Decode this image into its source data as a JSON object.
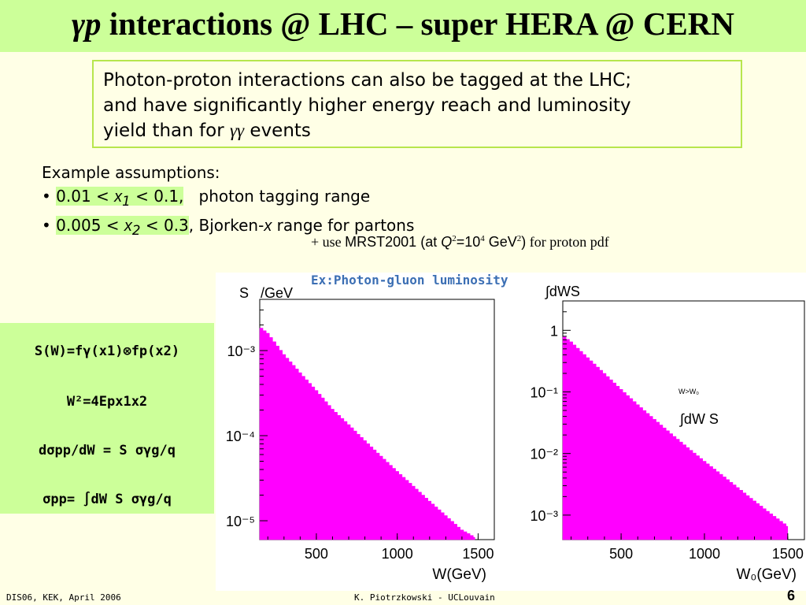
{
  "title": {
    "gp": "γp",
    "rest": " interactions @ LHC – super HERA @ CERN"
  },
  "callout": {
    "line1": "Photon-proton interactions can also be tagged at the LHC;",
    "line2": "and have significantly higher energy reach and luminosity",
    "line3_pre": "yield than for ",
    "line3_sym": "γγ",
    "line3_post": " events"
  },
  "assumptions": {
    "heading": "Example assumptions:",
    "b1_pre": "• ",
    "b1_hl_a": "0.01 < ",
    "b1_var": "x",
    "b1_sub": "1",
    "b1_hl_b": " < 0.1,",
    "b1_post": "   photon tagging range",
    "b2_pre": "• ",
    "b2_hl_a": "0.005 < ",
    "b2_var": "x",
    "b2_sub": "2",
    "b2_hl_b": " < 0.3",
    "b2_post": ", Bjorken-",
    "b2_var2": "x",
    "b2_post2": " range for partons"
  },
  "note": {
    "a": "+ use ",
    "b": "MRST2001 (at ",
    "q": "Q",
    "q_sup": "2",
    "c": "=10",
    "c_sup": "4",
    "d": " GeV",
    "d_sup": "2",
    "e": ")",
    "f": " for proton pdf"
  },
  "formulas": {
    "f1": "S(W)=fγ(x1)⊗fp(x2)",
    "f2": "W²=4Epx1x2",
    "f3": "dσpp/dW = S σγg/q",
    "f4": "σpp= ∫dW S σγg/q"
  },
  "figure": {
    "caption": "Ex:Photon-gluon luminosity",
    "left_ylabel": "S   /GeV",
    "right_ylabel": "∫dWS",
    "right_annot_sub": "W>W₀",
    "right_annot": "∫dW S"
  },
  "chart_data": [
    {
      "type": "area",
      "title": "",
      "xlabel": "W(GeV)",
      "ylabel": "S   /GeV",
      "yscale": "log",
      "xlim": [
        150,
        1600
      ],
      "ylim": [
        6e-06,
        0.004
      ],
      "x_ticks": [
        "500",
        "1000",
        "1500"
      ],
      "y_ticks": [
        "10⁻³",
        "10⁻⁴",
        "10⁻⁵"
      ],
      "color": "#ff00ff",
      "x": [
        150,
        200,
        300,
        400,
        500,
        600,
        700,
        800,
        900,
        1000,
        1100,
        1200,
        1300,
        1400,
        1480
      ],
      "y": [
        0.0019,
        0.0016,
        0.0009,
        0.00055,
        0.00034,
        0.000205,
        0.000135,
        8.75e-05,
        5.75e-05,
        3.8e-05,
        2.55e-05,
        1.7e-05,
        1.15e-05,
        7.8e-06,
        6.4e-06
      ]
    },
    {
      "type": "area",
      "title": "",
      "xlabel": "W₀(GeV)",
      "ylabel": "∫dWS",
      "yscale": "log",
      "xlim": [
        150,
        1600
      ],
      "ylim": [
        0.0004,
        3
      ],
      "x_ticks": [
        "500",
        "1000",
        "1500"
      ],
      "y_ticks": [
        "1",
        "10⁻¹",
        "10⁻²",
        "10⁻³"
      ],
      "color": "#ff00ff",
      "x": [
        150,
        200,
        300,
        400,
        500,
        600,
        700,
        800,
        900,
        1000,
        1100,
        1200,
        1300,
        1400,
        1500
      ],
      "y": [
        0.82,
        0.65,
        0.36,
        0.2,
        0.11,
        0.062,
        0.036,
        0.021,
        0.0125,
        0.0075,
        0.0046,
        0.0028,
        0.0017,
        0.00105,
        0.00066
      ]
    }
  ],
  "footer": {
    "left": "DIS06, KEK, April 2006",
    "center": "K. Piotrzkowski - UCLouvain",
    "page": "6"
  }
}
